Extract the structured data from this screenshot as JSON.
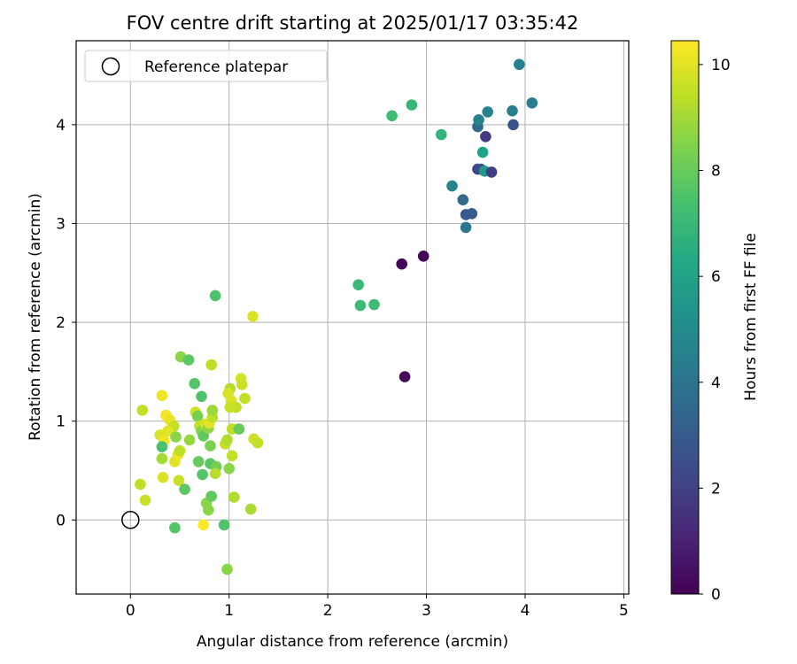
{
  "chart_data": {
    "type": "scatter",
    "title": "FOV centre drift starting at 2025/01/17 03:35:42",
    "xlabel": "Angular distance from reference (arcmin)",
    "ylabel": "Rotation from reference (arcmin)",
    "xlim": [
      -0.55,
      5.05
    ],
    "ylim": [
      -0.75,
      4.85
    ],
    "xticks": [
      0,
      1,
      2,
      3,
      4,
      5
    ],
    "yticks": [
      0,
      1,
      2,
      3,
      4
    ],
    "grid": true,
    "legend": {
      "placement": "top-left",
      "entries": [
        {
          "label": "Reference platepar",
          "marker": "open-circle"
        }
      ]
    },
    "reference_point": {
      "x": 0,
      "y": 0,
      "label": "Reference platepar"
    },
    "colorbar": {
      "label": "Hours from first FF file",
      "colormap": "viridis",
      "range": [
        0,
        10.45
      ],
      "ticks": [
        0,
        2,
        4,
        6,
        8,
        10
      ]
    },
    "series": [
      {
        "points": [
          [
            0.15,
            0.2,
            9.6
          ],
          [
            0.1,
            0.36,
            9.4
          ],
          [
            0.12,
            1.11,
            9.5
          ],
          [
            0.32,
            1.26,
            10.2
          ],
          [
            0.36,
            1.06,
            10.3
          ],
          [
            0.4,
            1.01,
            10.1
          ],
          [
            0.44,
            0.95,
            9.5
          ],
          [
            0.3,
            0.86,
            9.9
          ],
          [
            0.34,
            0.8,
            10.2
          ],
          [
            0.38,
            0.9,
            10.0
          ],
          [
            0.32,
            0.74,
            7.4
          ],
          [
            0.32,
            0.62,
            9.0
          ],
          [
            0.33,
            0.43,
            9.9
          ],
          [
            0.45,
            0.59,
            10.0
          ],
          [
            0.48,
            0.66,
            10.2
          ],
          [
            0.5,
            0.7,
            9.4
          ],
          [
            0.46,
            0.84,
            8.6
          ],
          [
            0.49,
            0.4,
            9.6
          ],
          [
            0.55,
            0.31,
            7.8
          ],
          [
            0.45,
            -0.08,
            7.6
          ],
          [
            0.51,
            1.65,
            8.6
          ],
          [
            0.59,
            1.62,
            7.8
          ],
          [
            0.65,
            1.38,
            7.6
          ],
          [
            0.72,
            1.25,
            7.5
          ],
          [
            0.6,
            0.81,
            8.8
          ],
          [
            0.66,
            1.09,
            9.7
          ],
          [
            0.68,
            1.05,
            8.3
          ],
          [
            0.7,
            0.95,
            9.5
          ],
          [
            0.72,
            0.9,
            8.6
          ],
          [
            0.74,
            0.85,
            7.9
          ],
          [
            0.76,
            0.97,
            9.7
          ],
          [
            0.79,
            0.93,
            8.7
          ],
          [
            0.8,
            0.98,
            10.0
          ],
          [
            0.83,
            1.04,
            9.4
          ],
          [
            0.83,
            1.11,
            8.9
          ],
          [
            0.82,
            1.57,
            9.4
          ],
          [
            0.86,
            2.27,
            7.5
          ],
          [
            0.69,
            0.59,
            8.0
          ],
          [
            0.73,
            0.46,
            7.6
          ],
          [
            0.81,
            0.57,
            7.7
          ],
          [
            0.81,
            0.75,
            8.3
          ],
          [
            0.87,
            0.54,
            8.2
          ],
          [
            0.86,
            0.47,
            9.3
          ],
          [
            0.74,
            -0.05,
            10.4
          ],
          [
            0.77,
            0.17,
            8.6
          ],
          [
            0.79,
            0.1,
            8.6
          ],
          [
            0.82,
            0.24,
            7.9
          ],
          [
            0.95,
            -0.05,
            7.5
          ],
          [
            0.96,
            0.77,
            9.5
          ],
          [
            0.98,
            0.81,
            9.2
          ],
          [
            1.0,
            0.52,
            8.6
          ],
          [
            1.01,
            1.33,
            9.3
          ],
          [
            0.99,
            1.28,
            9.8
          ],
          [
            1.02,
            1.21,
            9.9
          ],
          [
            1.01,
            1.14,
            9.6
          ],
          [
            1.03,
            0.92,
            9.4
          ],
          [
            1.03,
            0.65,
            9.5
          ],
          [
            1.05,
            0.23,
            9.2
          ],
          [
            1.07,
            1.14,
            9.5
          ],
          [
            1.1,
            0.92,
            8.0
          ],
          [
            1.12,
            1.43,
            9.8
          ],
          [
            1.13,
            1.37,
            9.6
          ],
          [
            1.16,
            1.23,
            9.5
          ],
          [
            1.22,
            0.11,
            9.1
          ],
          [
            1.24,
            2.06,
            9.9
          ],
          [
            1.25,
            0.82,
            9.7
          ],
          [
            1.29,
            0.78,
            9.5
          ],
          [
            0.98,
            -0.5,
            8.6
          ],
          [
            2.31,
            2.38,
            7.0
          ],
          [
            2.33,
            2.17,
            7.1
          ],
          [
            2.47,
            2.18,
            7.2
          ],
          [
            2.65,
            4.09,
            7.2
          ],
          [
            2.85,
            4.2,
            6.9
          ],
          [
            3.15,
            3.9,
            6.8
          ],
          [
            2.75,
            2.59,
            0.1
          ],
          [
            2.97,
            2.67,
            0.1
          ],
          [
            2.78,
            1.45,
            0.2
          ],
          [
            3.26,
            3.38,
            4.7
          ],
          [
            3.37,
            3.24,
            3.6
          ],
          [
            3.4,
            3.09,
            2.9
          ],
          [
            3.46,
            3.1,
            3.0
          ],
          [
            3.4,
            2.96,
            4.2
          ],
          [
            3.52,
            3.55,
            2.1
          ],
          [
            3.55,
            3.55,
            2.5
          ],
          [
            3.59,
            3.53,
            5.7
          ],
          [
            3.66,
            3.52,
            1.9
          ],
          [
            3.57,
            3.72,
            6.0
          ],
          [
            3.52,
            3.98,
            3.5
          ],
          [
            3.53,
            4.05,
            4.6
          ],
          [
            3.6,
            3.88,
            1.8
          ],
          [
            3.62,
            4.13,
            4.6
          ],
          [
            3.87,
            4.14,
            4.4
          ],
          [
            3.88,
            4.0,
            2.7
          ],
          [
            3.94,
            4.61,
            4.5
          ],
          [
            4.07,
            4.22,
            4.4
          ]
        ]
      }
    ]
  }
}
